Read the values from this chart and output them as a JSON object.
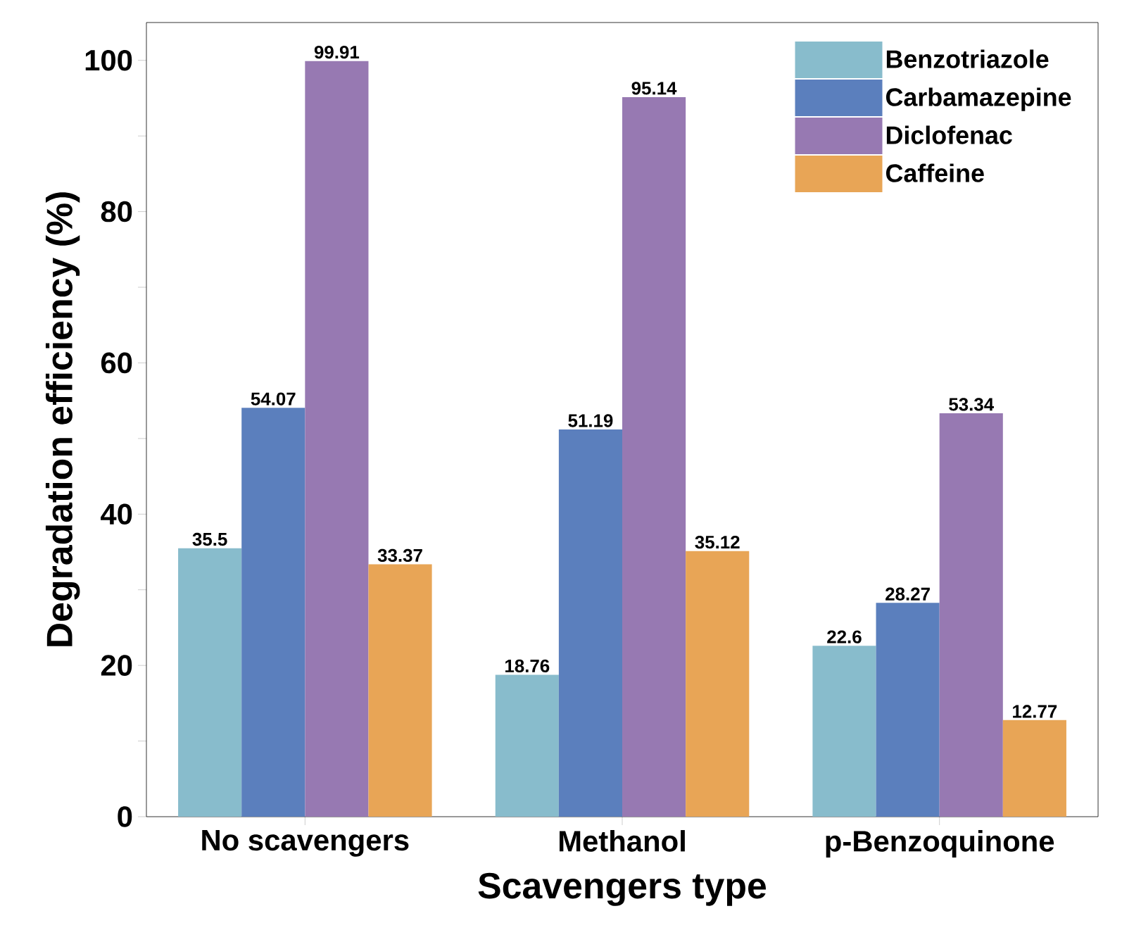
{
  "chart_data": {
    "type": "bar",
    "xlabel": "Scavengers type",
    "ylabel": "Degradation efficiency (%)",
    "categories": [
      "No scavengers",
      "Methanol",
      "p-Benzoquinone"
    ],
    "series": [
      {
        "name": "Benzotriazole",
        "color": "#88bccc",
        "values": [
          35.5,
          18.76,
          22.6
        ]
      },
      {
        "name": "Carbamazepine",
        "color": "#5b7fbd",
        "values": [
          54.07,
          51.19,
          28.27
        ]
      },
      {
        "name": "Diclofenac",
        "color": "#9779b2",
        "values": [
          99.91,
          95.14,
          53.34
        ]
      },
      {
        "name": "Caffeine",
        "color": "#e8a556",
        "values": [
          33.37,
          35.12,
          12.77
        ]
      }
    ],
    "ylim": [
      0,
      105
    ],
    "yticks": [
      0,
      {
        "value": 10,
        "label": null
      },
      20,
      {
        "value": 30,
        "label": null
      },
      40,
      {
        "value": 50,
        "label": null
      },
      60,
      {
        "value": 70,
        "label": null
      },
      80,
      {
        "value": 90,
        "label": null
      },
      100
    ],
    "data_labels": true,
    "legend": "top right",
    "grid": false
  }
}
